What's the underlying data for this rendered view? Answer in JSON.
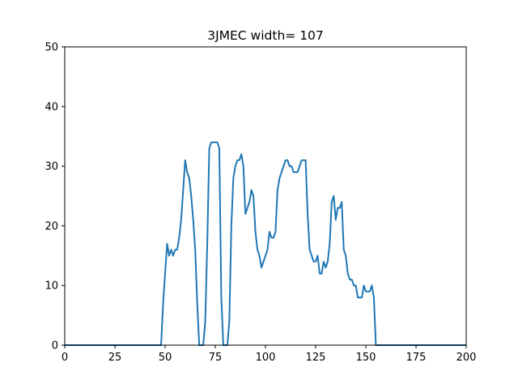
{
  "chart_data": {
    "type": "line",
    "title": "3JMEC width= 107",
    "xlabel": "",
    "ylabel": "",
    "xlim": [
      0,
      200
    ],
    "ylim": [
      0,
      50
    ],
    "x_ticks": [
      0,
      25,
      50,
      75,
      100,
      125,
      150,
      175,
      200
    ],
    "y_ticks": [
      0,
      10,
      20,
      30,
      40,
      50
    ],
    "grid": false,
    "legend": "none",
    "line_color": "#1f77b4",
    "series": [
      {
        "points": [
          [
            0,
            0
          ],
          [
            48,
            0
          ],
          [
            49,
            7
          ],
          [
            50,
            12
          ],
          [
            51,
            17
          ],
          [
            52,
            15
          ],
          [
            53,
            16
          ],
          [
            54,
            15
          ],
          [
            55,
            16
          ],
          [
            56,
            16
          ],
          [
            57,
            18
          ],
          [
            58,
            21
          ],
          [
            59,
            26
          ],
          [
            60,
            31
          ],
          [
            61,
            29
          ],
          [
            62,
            28
          ],
          [
            63,
            25
          ],
          [
            64,
            21
          ],
          [
            65,
            16
          ],
          [
            66,
            7
          ],
          [
            67,
            0
          ],
          [
            69,
            0
          ],
          [
            70,
            4
          ],
          [
            71,
            17
          ],
          [
            72,
            33
          ],
          [
            73,
            34
          ],
          [
            75,
            34
          ],
          [
            76,
            34
          ],
          [
            77,
            33
          ],
          [
            78,
            8
          ],
          [
            79,
            0
          ],
          [
            81,
            0
          ],
          [
            82,
            4
          ],
          [
            83,
            20
          ],
          [
            84,
            28
          ],
          [
            85,
            30
          ],
          [
            86,
            31
          ],
          [
            87,
            31
          ],
          [
            88,
            32
          ],
          [
            89,
            30
          ],
          [
            90,
            22
          ],
          [
            91,
            23
          ],
          [
            92,
            24
          ],
          [
            93,
            26
          ],
          [
            94,
            25
          ],
          [
            95,
            19
          ],
          [
            96,
            16
          ],
          [
            97,
            15
          ],
          [
            98,
            13
          ],
          [
            99,
            14
          ],
          [
            100,
            15
          ],
          [
            101,
            16
          ],
          [
            102,
            19
          ],
          [
            103,
            18
          ],
          [
            104,
            18
          ],
          [
            105,
            19
          ],
          [
            106,
            26
          ],
          [
            107,
            28
          ],
          [
            108,
            29
          ],
          [
            109,
            30
          ],
          [
            110,
            31
          ],
          [
            111,
            31
          ],
          [
            112,
            30
          ],
          [
            113,
            30
          ],
          [
            114,
            29
          ],
          [
            115,
            29
          ],
          [
            116,
            29
          ],
          [
            117,
            30
          ],
          [
            118,
            31
          ],
          [
            119,
            31
          ],
          [
            120,
            31
          ],
          [
            121,
            22
          ],
          [
            122,
            16
          ],
          [
            123,
            15
          ],
          [
            124,
            14
          ],
          [
            125,
            14
          ],
          [
            126,
            15
          ],
          [
            127,
            12
          ],
          [
            128,
            12
          ],
          [
            129,
            14
          ],
          [
            130,
            13
          ],
          [
            131,
            14
          ],
          [
            132,
            17
          ],
          [
            133,
            24
          ],
          [
            134,
            25
          ],
          [
            135,
            21
          ],
          [
            136,
            23
          ],
          [
            137,
            23
          ],
          [
            138,
            24
          ],
          [
            139,
            16
          ],
          [
            140,
            15
          ],
          [
            141,
            12
          ],
          [
            142,
            11
          ],
          [
            143,
            11
          ],
          [
            144,
            10
          ],
          [
            145,
            10
          ],
          [
            146,
            8
          ],
          [
            147,
            8
          ],
          [
            148,
            8
          ],
          [
            149,
            10
          ],
          [
            150,
            9
          ],
          [
            151,
            9
          ],
          [
            152,
            9
          ],
          [
            153,
            10
          ],
          [
            154,
            8
          ],
          [
            155,
            0
          ],
          [
            200,
            0
          ]
        ]
      }
    ]
  }
}
